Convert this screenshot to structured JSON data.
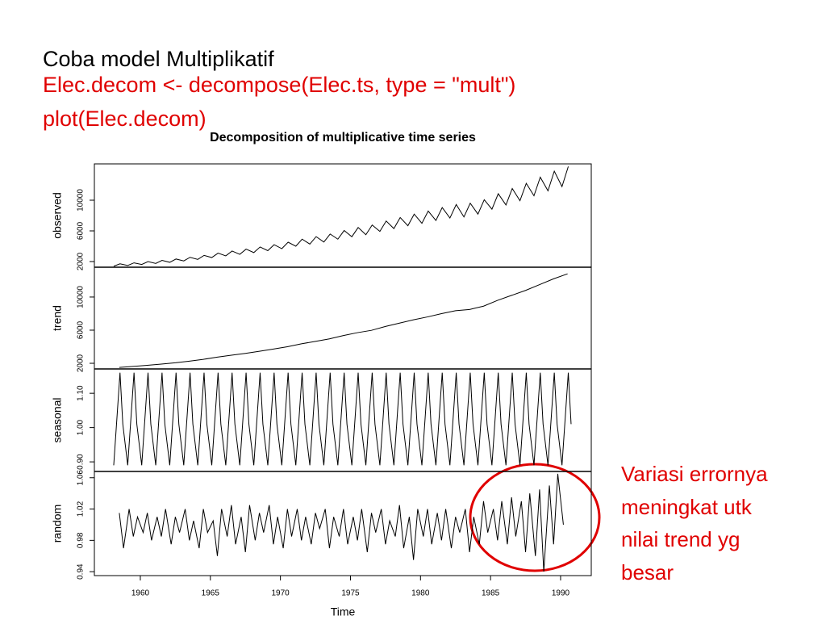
{
  "slide": {
    "title": "Coba model Multiplikatif",
    "code": [
      "Elec.decom <- decompose(Elec.ts, type = \"mult\")",
      "plot(Elec.decom)"
    ],
    "note": [
      "Variasi errornya",
      "meningkat utk",
      "nilai trend yg",
      "besar"
    ]
  },
  "chart_data": [
    {
      "type": "line",
      "title": "Decomposition of multiplicative time series",
      "ylabel": "observed",
      "color": "#000000",
      "xlim": [
        1956.72,
        1992.19
      ],
      "ylim": [
        1260,
        14740
      ],
      "yticks": [
        2000,
        6000,
        10000
      ],
      "x": [
        1958.1,
        1958.55,
        1959.1,
        1959.55,
        1960.1,
        1960.55,
        1961.1,
        1961.55,
        1962.1,
        1962.55,
        1963.1,
        1963.55,
        1964.1,
        1964.55,
        1965.1,
        1965.55,
        1966.1,
        1966.55,
        1967.1,
        1967.55,
        1968.1,
        1968.55,
        1969.1,
        1969.55,
        1970.1,
        1970.55,
        1971.1,
        1971.55,
        1972.1,
        1972.55,
        1973.1,
        1973.55,
        1974.1,
        1974.55,
        1975.1,
        1975.55,
        1976.1,
        1976.55,
        1977.1,
        1977.55,
        1978.1,
        1978.55,
        1979.1,
        1979.55,
        1980.1,
        1980.55,
        1981.1,
        1981.55,
        1982.1,
        1982.55,
        1983.1,
        1983.55,
        1984.1,
        1984.55,
        1985.1,
        1985.55,
        1986.1,
        1986.55,
        1987.1,
        1987.55,
        1988.1,
        1988.55,
        1989.1,
        1989.55,
        1990.1,
        1990.55
      ],
      "values": [
        1390,
        1700,
        1490,
        1830,
        1620,
        1990,
        1750,
        2150,
        1900,
        2330,
        2080,
        2550,
        2280,
        2800,
        2520,
        3100,
        2740,
        3370,
        2940,
        3620,
        3170,
        3900,
        3420,
        4200,
        3680,
        4520,
        4000,
        4920,
        4280,
        5250,
        4550,
        5590,
        4920,
        6050,
        5240,
        6440,
        5500,
        6760,
        5930,
        7290,
        6300,
        7740,
        6670,
        8190,
        6990,
        8590,
        7360,
        9040,
        7680,
        9440,
        7820,
        9610,
        8190,
        10060,
        8830,
        10850,
        9380,
        11530,
        9940,
        12200,
        10580,
        13000,
        11220,
        13790,
        11780,
        14400
      ]
    },
    {
      "type": "line",
      "ylabel": "trend",
      "color": "#000000",
      "xlim": [
        1956.72,
        1992.19
      ],
      "ylim": [
        1320,
        13600
      ],
      "yticks": [
        2000,
        6000,
        10000
      ],
      "x": [
        1958.5,
        1959.5,
        1960.5,
        1961.5,
        1962.5,
        1963.5,
        1964.5,
        1965.5,
        1966.5,
        1967.5,
        1968.5,
        1969.5,
        1970.5,
        1971.5,
        1972.5,
        1973.5,
        1974.5,
        1975.5,
        1976.5,
        1977.5,
        1978.5,
        1979.5,
        1980.5,
        1981.5,
        1982.5,
        1983.5,
        1984.5,
        1985.5,
        1986.5,
        1987.5,
        1988.5,
        1989.5,
        1990.5
      ],
      "values": [
        1500,
        1620,
        1760,
        1900,
        2060,
        2260,
        2480,
        2740,
        2980,
        3200,
        3450,
        3720,
        4000,
        4350,
        4650,
        4950,
        5350,
        5700,
        5980,
        6450,
        6850,
        7250,
        7600,
        8000,
        8350,
        8500,
        8900,
        9600,
        10200,
        10800,
        11500,
        12200,
        12800
      ]
    },
    {
      "type": "line",
      "ylabel": "seasonal",
      "color": "#000000",
      "xlim": [
        1956.72,
        1992.19
      ],
      "ylim": [
        0.872,
        1.171
      ],
      "yticks": [
        {
          "value": 0.9,
          "label": "0.90"
        },
        {
          "value": 1,
          "label": "1.00"
        },
        {
          "value": 1.1,
          "label": "1.10"
        }
      ],
      "x": [
        1958.1,
        1958.55,
        1958.75,
        1959.1,
        1959.55,
        1959.75,
        1960.1,
        1960.55,
        1960.75,
        1961.1,
        1961.55,
        1961.75,
        1962.1,
        1962.55,
        1962.75,
        1963.1,
        1963.55,
        1963.75,
        1964.1,
        1964.55,
        1964.75,
        1965.1,
        1965.55,
        1965.75,
        1966.1,
        1966.55,
        1966.75,
        1967.1,
        1967.55,
        1967.75,
        1968.1,
        1968.55,
        1968.75,
        1969.1,
        1969.55,
        1969.75,
        1970.1,
        1970.55,
        1970.75,
        1971.1,
        1971.55,
        1971.75,
        1972.1,
        1972.55,
        1972.75,
        1973.1,
        1973.55,
        1973.75,
        1974.1,
        1974.55,
        1974.75,
        1975.1,
        1975.55,
        1975.75,
        1976.1,
        1976.55,
        1976.75,
        1977.1,
        1977.55,
        1977.75,
        1978.1,
        1978.55,
        1978.75,
        1979.1,
        1979.55,
        1979.75,
        1980.1,
        1980.55,
        1980.75,
        1981.1,
        1981.55,
        1981.75,
        1982.1,
        1982.55,
        1982.75,
        1983.1,
        1983.55,
        1983.75,
        1984.1,
        1984.55,
        1984.75,
        1985.1,
        1985.55,
        1985.75,
        1986.1,
        1986.55,
        1986.75,
        1987.1,
        1987.55,
        1987.75,
        1988.1,
        1988.55,
        1988.75,
        1989.1,
        1989.55,
        1989.75,
        1990.1,
        1990.55,
        1990.75
      ],
      "values": [
        0.89,
        1.16,
        1.01,
        0.89,
        1.16,
        1.01,
        0.89,
        1.16,
        1.01,
        0.89,
        1.16,
        1.01,
        0.89,
        1.16,
        1.01,
        0.89,
        1.16,
        1.01,
        0.89,
        1.16,
        1.01,
        0.89,
        1.16,
        1.01,
        0.89,
        1.16,
        1.01,
        0.89,
        1.16,
        1.01,
        0.89,
        1.16,
        1.01,
        0.89,
        1.16,
        1.01,
        0.89,
        1.16,
        1.01,
        0.89,
        1.16,
        1.01,
        0.89,
        1.16,
        1.01,
        0.89,
        1.16,
        1.01,
        0.89,
        1.16,
        1.01,
        0.89,
        1.16,
        1.01,
        0.89,
        1.16,
        1.01,
        0.89,
        1.16,
        1.01,
        0.89,
        1.16,
        1.01,
        0.89,
        1.16,
        1.01,
        0.89,
        1.16,
        1.01,
        0.89,
        1.16,
        1.01,
        0.89,
        1.16,
        1.01,
        0.89,
        1.16,
        1.01,
        0.89,
        1.16,
        1.01,
        0.89,
        1.16,
        1.01,
        0.89,
        1.16,
        1.01,
        0.89,
        1.16,
        1.01,
        0.89,
        1.16,
        1.01,
        0.89,
        1.16,
        1.01,
        0.89,
        1.16,
        1.01
      ]
    },
    {
      "type": "line",
      "ylabel": "random",
      "xlabel": "Time",
      "color": "#000000",
      "xlim": [
        1956.72,
        1992.19
      ],
      "xticks": [
        1960,
        1965,
        1970,
        1975,
        1980,
        1985,
        1990
      ],
      "ylim": [
        0.935,
        1.068
      ],
      "yticks": [
        0.94,
        0.98,
        1.02,
        1.06
      ],
      "x": [
        1958.5,
        1958.8,
        1959.2,
        1959.5,
        1959.8,
        1960.2,
        1960.5,
        1960.8,
        1961.2,
        1961.5,
        1961.8,
        1962.2,
        1962.5,
        1962.8,
        1963.2,
        1963.5,
        1963.8,
        1964.2,
        1964.5,
        1964.8,
        1965.2,
        1965.5,
        1965.8,
        1966.2,
        1966.5,
        1966.8,
        1967.2,
        1967.5,
        1967.8,
        1968.2,
        1968.5,
        1968.8,
        1969.2,
        1969.5,
        1969.8,
        1970.2,
        1970.5,
        1970.8,
        1971.2,
        1971.5,
        1971.8,
        1972.2,
        1972.5,
        1972.8,
        1973.2,
        1973.5,
        1973.8,
        1974.2,
        1974.5,
        1974.8,
        1975.2,
        1975.5,
        1975.8,
        1976.2,
        1976.5,
        1976.8,
        1977.2,
        1977.5,
        1977.8,
        1978.2,
        1978.5,
        1978.8,
        1979.2,
        1979.5,
        1979.8,
        1980.2,
        1980.5,
        1980.8,
        1981.2,
        1981.5,
        1981.8,
        1982.2,
        1982.5,
        1982.8,
        1983.2,
        1983.5,
        1983.8,
        1984.2,
        1984.5,
        1984.8,
        1985.2,
        1985.5,
        1985.8,
        1986.2,
        1986.5,
        1986.8,
        1987.2,
        1987.5,
        1987.8,
        1988.2,
        1988.5,
        1988.8,
        1989.2,
        1989.5,
        1989.8,
        1990.2
      ],
      "values": [
        1.015,
        0.97,
        1.02,
        0.985,
        1.01,
        0.99,
        1.015,
        0.98,
        1.01,
        0.985,
        1.02,
        0.975,
        1.01,
        0.99,
        1.02,
        0.98,
        1.005,
        0.97,
        1.02,
        0.99,
        1.005,
        0.96,
        1.02,
        0.985,
        1.025,
        0.975,
        1.01,
        0.965,
        1.025,
        0.98,
        1.015,
        0.99,
        1.025,
        0.975,
        1.01,
        0.97,
        1.02,
        0.985,
        1.02,
        0.98,
        1.01,
        0.975,
        1.015,
        0.995,
        1.02,
        0.97,
        1.01,
        0.985,
        1.02,
        0.975,
        1.01,
        0.98,
        1.02,
        0.965,
        1.015,
        0.99,
        1.02,
        0.975,
        1.005,
        0.985,
        1.025,
        0.97,
        1.01,
        0.955,
        1.02,
        0.985,
        1.02,
        0.975,
        1.015,
        0.98,
        1.02,
        0.97,
        1.01,
        0.99,
        1.02,
        0.965,
        1.01,
        0.975,
        1.03,
        0.99,
        1.02,
        0.98,
        1.03,
        0.975,
        1.035,
        0.985,
        1.03,
        0.965,
        1.04,
        0.96,
        1.045,
        0.94,
        1.05,
        0.975,
        1.065,
        1.0
      ]
    }
  ]
}
